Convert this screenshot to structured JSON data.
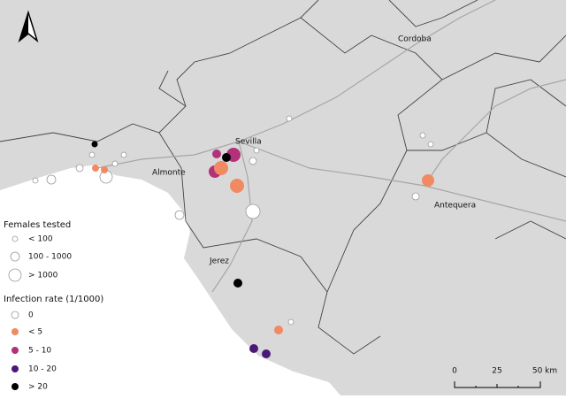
{
  "map": {
    "places": [
      "Cordoba",
      "Sevilla",
      "Almonte",
      "Antequera",
      "Jerez"
    ],
    "legend_size": {
      "title": "Females tested",
      "items": [
        "< 100",
        "100 - 1000",
        "> 1000"
      ]
    },
    "legend_rate": {
      "title": "Infection rate (1/1000)",
      "items": [
        "0",
        "< 5",
        "5 - 10",
        "10 - 20",
        "> 20"
      ]
    },
    "scale_bar": [
      "0",
      "25",
      "50 km"
    ]
  }
}
